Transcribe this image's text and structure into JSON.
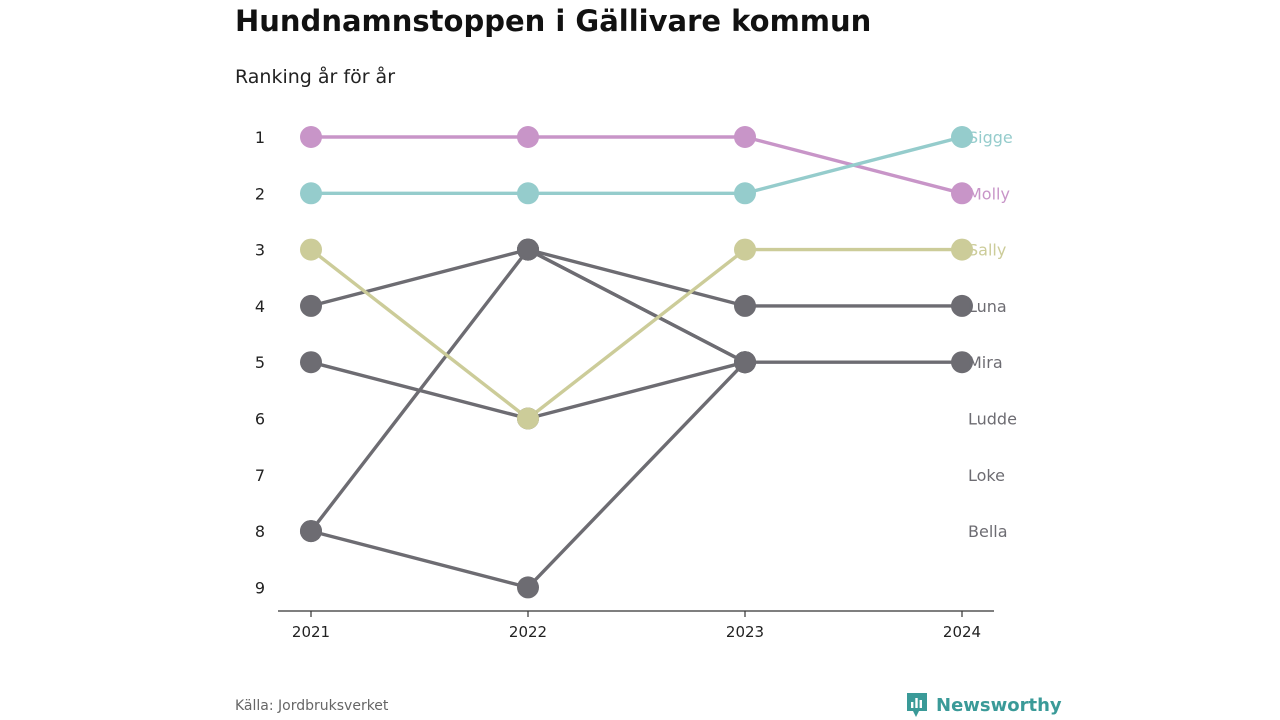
{
  "title": "Hundnamnstoppen i Gällivare kommun",
  "subtitle": "Ranking år för år",
  "source": "Källa: Jordbruksverket",
  "brand": {
    "name": "Newsworthy",
    "icon": "newsworthy-logo-icon",
    "color": "#3a9a98"
  },
  "chart_data": {
    "type": "line",
    "x": [
      "2021",
      "2022",
      "2023",
      "2024"
    ],
    "y_ticks": [
      "1",
      "2",
      "3",
      "4",
      "5",
      "6",
      "7",
      "8",
      "9"
    ],
    "y_reversed": true,
    "ylim": [
      1,
      9
    ],
    "grid": false,
    "series": [
      {
        "name": "Bella",
        "values": [
          8,
          3,
          5,
          null
        ],
        "color": "#6d6c72"
      },
      {
        "name": "Loke",
        "values": [
          5,
          6,
          5,
          null
        ],
        "color": "#6d6c72"
      },
      {
        "name": "Ludde",
        "values": [
          8,
          9,
          5,
          null
        ],
        "color": "#6d6c72"
      },
      {
        "name": "Mira",
        "values": [
          4,
          3,
          5,
          5
        ],
        "color": "#6d6c72"
      },
      {
        "name": "Luna",
        "values": [
          null,
          3,
          4,
          4
        ],
        "color": "#6d6c72"
      },
      {
        "name": "Sally",
        "values": [
          3,
          6,
          3,
          3
        ],
        "color": "#cccc99"
      },
      {
        "name": "Molly",
        "values": [
          1,
          1,
          1,
          2
        ],
        "color": "#c895c8"
      },
      {
        "name": "Sigge",
        "values": [
          2,
          2,
          2,
          1
        ],
        "color": "#95cccc"
      }
    ],
    "end_labels": [
      {
        "name": "Sigge",
        "rank": 1,
        "color": "#95cccc"
      },
      {
        "name": "Molly",
        "rank": 2,
        "color": "#c895c8"
      },
      {
        "name": "Sally",
        "rank": 3,
        "color": "#cccc99"
      },
      {
        "name": "Luna",
        "rank": 4,
        "color": "#6d6c72"
      },
      {
        "name": "Mira",
        "rank": 5,
        "color": "#6d6c72"
      },
      {
        "name": "Ludde",
        "rank": 6,
        "color": "#6d6c72"
      },
      {
        "name": "Loke",
        "rank": 7,
        "color": "#6d6c72"
      },
      {
        "name": "Bella",
        "rank": 8,
        "color": "#6d6c72"
      }
    ]
  }
}
